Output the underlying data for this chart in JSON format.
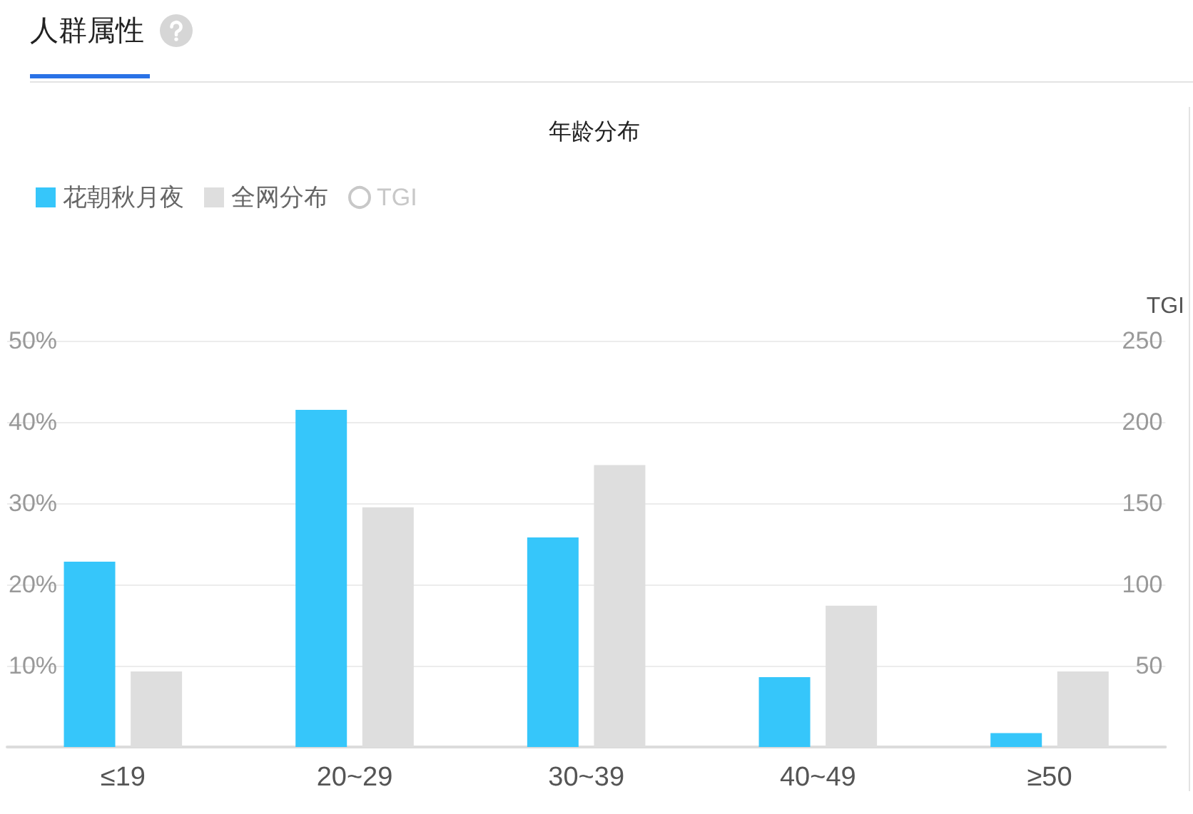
{
  "chart_data": {
    "type": "bar",
    "title": "年龄分布",
    "annotations": [
      "人群属性"
    ],
    "y2label": "TGI",
    "categories": [
      "≤19",
      "20~29",
      "30~39",
      "40~49",
      "≥50"
    ],
    "series": [
      {
        "name": "花朝秋月夜",
        "color": "#36c6fa",
        "values": [
          22.8,
          41.5,
          25.8,
          8.6,
          1.7
        ]
      },
      {
        "name": "全网分布",
        "color": "#dedede",
        "values": [
          9.3,
          29.5,
          34.7,
          17.4,
          9.3
        ]
      },
      {
        "name": "TGI",
        "type": "line",
        "values": [
          null,
          null,
          null,
          null,
          null
        ]
      }
    ],
    "ylim": [
      0,
      50
    ],
    "yticks": [
      {
        "value": 10,
        "label": "10%"
      },
      {
        "value": 20,
        "label": "20%"
      },
      {
        "value": 30,
        "label": "30%"
      },
      {
        "value": 40,
        "label": "40%"
      },
      {
        "value": 50,
        "label": "50%"
      }
    ],
    "y2lim": [
      0,
      250
    ],
    "y2ticks": [
      50,
      100,
      150,
      200,
      250
    ],
    "grid": "y",
    "legend": "top left",
    "marker": "circle"
  }
}
